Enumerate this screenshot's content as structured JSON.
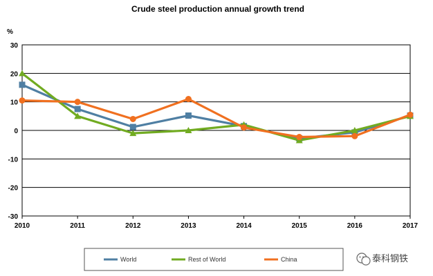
{
  "chart_data": {
    "type": "line",
    "title": "Crude steel production annual growth trend",
    "ylabel": "%",
    "xlabel": "",
    "x": [
      "2010",
      "2011",
      "2012",
      "2013",
      "2014",
      "2015",
      "2016",
      "2017"
    ],
    "ylim": [
      -30,
      30
    ],
    "yticks": [
      30,
      20,
      10,
      0,
      -10,
      -20,
      -30
    ],
    "grid": true,
    "legend_position": "bottom",
    "series": [
      {
        "name": "World",
        "color": "#4f7fa3",
        "marker": "square",
        "values": [
          16,
          7.5,
          1.2,
          5.2,
          1.5,
          -2.8,
          -0.7,
          5.2
        ]
      },
      {
        "name": "Rest of World",
        "color": "#71ab21",
        "marker": "triangle",
        "values": [
          20,
          5,
          -1,
          0,
          2,
          -3.5,
          0,
          5
        ]
      },
      {
        "name": "China",
        "color": "#f07020",
        "marker": "circle",
        "values": [
          10.5,
          10,
          4,
          11,
          1,
          -2.3,
          -2,
          5.5
        ]
      }
    ]
  },
  "watermark": {
    "icon": "wechat-icon",
    "text": "泰科钢铁"
  }
}
